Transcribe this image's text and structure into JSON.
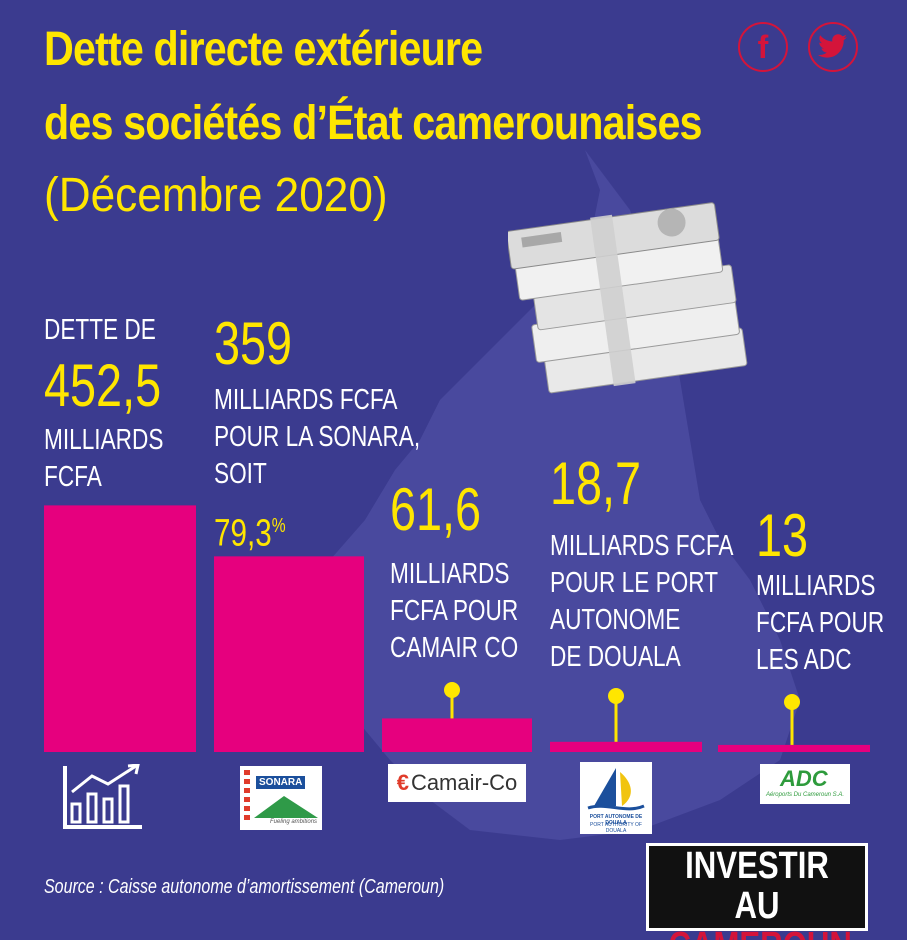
{
  "title": {
    "line1": "Dette directe extérieure",
    "line2": "des sociétés d’État camerounaises",
    "line3": "(Décembre 2020)"
  },
  "social": {
    "facebook": "f",
    "twitter": "t"
  },
  "colors": {
    "background": "#3b3b8f",
    "bar": "#e6007e",
    "accent": "#ffe600",
    "text": "#ffffff"
  },
  "icons": {
    "money": "banknote-stack-icon",
    "growth": "growth-chart-icon"
  },
  "chart_data": {
    "type": "bar",
    "title": "Dette directe extérieure des sociétés d’État camerounaises (Décembre 2020)",
    "unit": "milliards FCFA",
    "categories": [
      "Total",
      "SONARA",
      "Camair-Co",
      "Port Autonome de Douala",
      "ADC"
    ],
    "values": [
      452.5,
      359,
      61.6,
      18.7,
      13
    ],
    "labels": [
      {
        "before": "DETTE DE",
        "value": "452,5",
        "after": [
          "MILLIARDS",
          "FCFA"
        ]
      },
      {
        "value": "359",
        "after": [
          "MILLIARDS FCFA",
          "POUR LA SONARA,",
          "SOIT"
        ],
        "percent": "79,3",
        "percent_sign": "%"
      },
      {
        "value": "61,6",
        "after": [
          "MILLIARDS",
          "FCFA POUR",
          "CAMAIR CO"
        ]
      },
      {
        "value": "18,7",
        "after": [
          "MILLIARDS FCFA",
          "POUR LE PORT",
          "AUTONOME",
          "DE DOUALA"
        ]
      },
      {
        "value": "13",
        "after": [
          "MILLIARDS",
          "FCFA POUR",
          "LES ADC"
        ]
      }
    ]
  },
  "logos": {
    "sonara": "SONARA",
    "sonara_tagline": "Fueling ambitions",
    "camair": "Camair-Co",
    "port": "PORT AUTONOME DE DOUALA",
    "port_sub": "PORT AUTHORITY OF DOUALA",
    "adc": "ADC",
    "adc_sub": "Aéroports Du Cameroun S.A."
  },
  "brand": {
    "line1": "INVESTIR AU",
    "line2": "CAMEROUN"
  },
  "source": "Source : Caisse autonome d’amortissement (Cameroun)"
}
